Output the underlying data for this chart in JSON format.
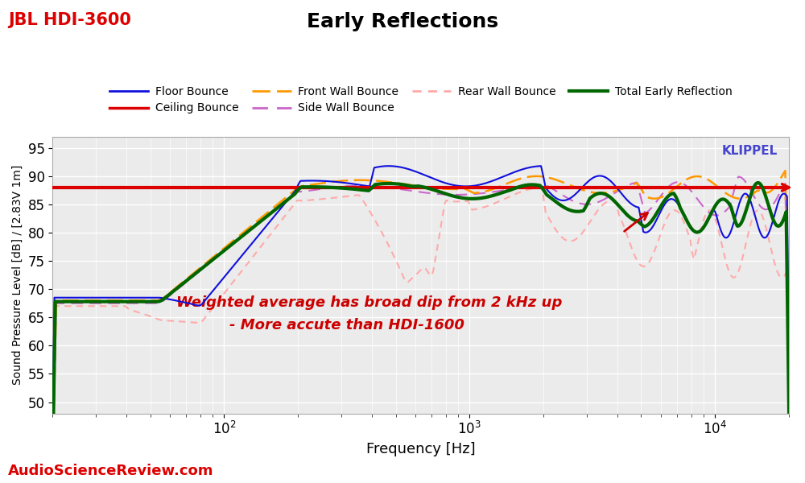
{
  "title": "Early Reflections",
  "subtitle": "JBL HDI-3600",
  "xlabel": "Frequency [Hz]",
  "ylabel": "Sound Pressure Level [dB] / [2.83V 1m]",
  "xlim": [
    20,
    20000
  ],
  "ylim": [
    48,
    97
  ],
  "yticks": [
    50,
    55,
    60,
    65,
    70,
    75,
    80,
    85,
    90,
    95
  ],
  "annotation1": "Weighted average has broad dip from 2 kHz up",
  "annotation2": "- More accute than HDI-1600",
  "klippel_text": "KLIPPEL",
  "watermark": "AudioScienceReview.com",
  "ceiling_bounce_level": 88.0,
  "colors": {
    "floor_bounce": "#1010dd",
    "ceiling_bounce": "#dd0000",
    "front_wall": "#ff9900",
    "side_wall": "#cc66cc",
    "rear_wall": "#ffaaaa",
    "total_early": "#006600",
    "annotation": "#cc0000",
    "title_left": "#dd0000",
    "watermark": "#dd0000",
    "klippel": "#4444cc",
    "background": "#ebebeb"
  }
}
